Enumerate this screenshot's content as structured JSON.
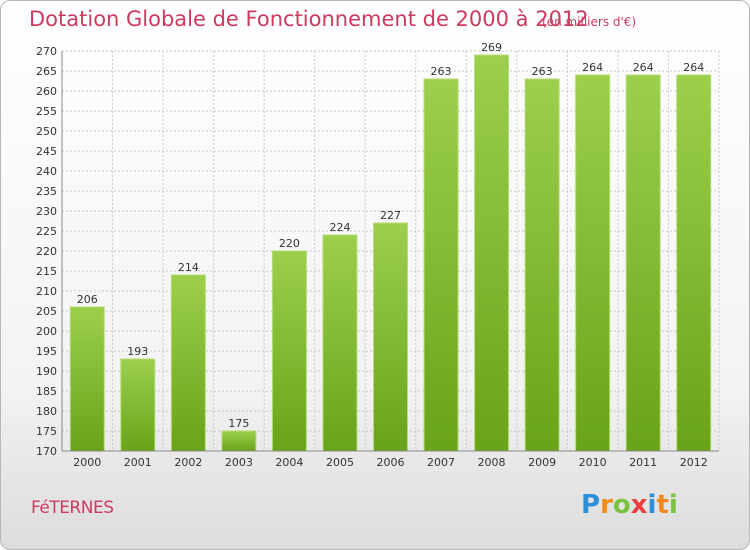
{
  "header": {
    "title": "Dotation Globale de Fonctionnement de 2000 à 2012",
    "unit": "(en milliers d'€)"
  },
  "footer": {
    "commune": "FéTERNES",
    "brand": [
      "P",
      "r",
      "o",
      "x",
      "i",
      "t",
      "i"
    ],
    "brand_colors": [
      "#2f8fd8",
      "#f08a1c",
      "#7cc242",
      "#e84040",
      "#2f8fd8",
      "#f08a1c",
      "#7cc242"
    ]
  },
  "colors": {
    "bar_light": "#9ccf4d",
    "bar_dark": "#69a319",
    "text": "#333333",
    "grid": "#c8c8c8"
  },
  "chart_data": {
    "type": "bar",
    "categories": [
      "2000",
      "2001",
      "2002",
      "2003",
      "2004",
      "2005",
      "2006",
      "2007",
      "2008",
      "2009",
      "2010",
      "2011",
      "2012"
    ],
    "values": [
      206,
      193,
      214,
      175,
      220,
      224,
      227,
      263,
      269,
      263,
      264,
      264,
      264
    ],
    "ylim": [
      170,
      270
    ],
    "yticks": [
      170,
      175,
      180,
      185,
      190,
      195,
      200,
      205,
      210,
      215,
      220,
      225,
      230,
      235,
      240,
      245,
      250,
      255,
      260,
      265,
      270
    ],
    "grid": true,
    "data_labels": true
  }
}
